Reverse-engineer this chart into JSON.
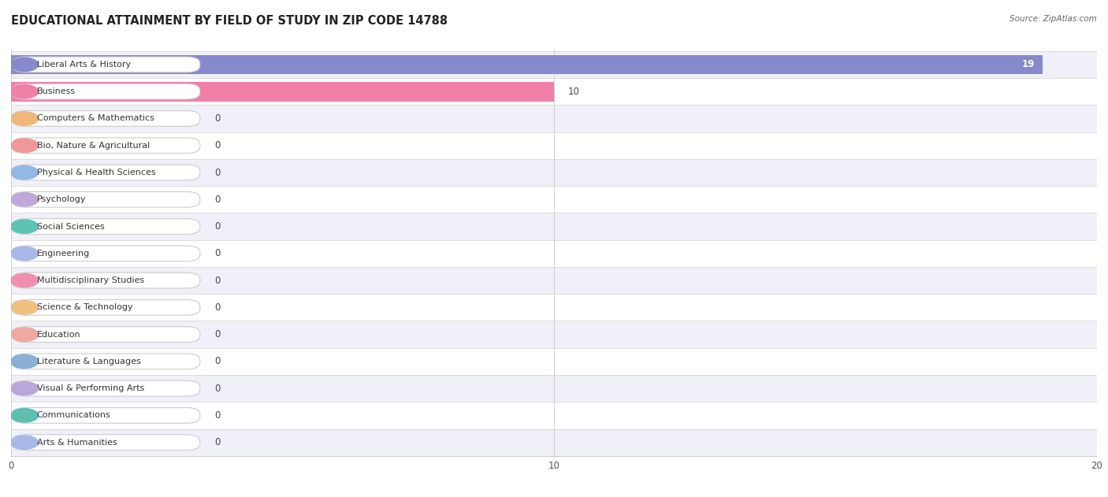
{
  "title": "EDUCATIONAL ATTAINMENT BY FIELD OF STUDY IN ZIP CODE 14788",
  "source": "Source: ZipAtlas.com",
  "categories": [
    "Liberal Arts & History",
    "Business",
    "Computers & Mathematics",
    "Bio, Nature & Agricultural",
    "Physical & Health Sciences",
    "Psychology",
    "Social Sciences",
    "Engineering",
    "Multidisciplinary Studies",
    "Science & Technology",
    "Education",
    "Literature & Languages",
    "Visual & Performing Arts",
    "Communications",
    "Arts & Humanities"
  ],
  "values": [
    19,
    10,
    0,
    0,
    0,
    0,
    0,
    0,
    0,
    0,
    0,
    0,
    0,
    0,
    0
  ],
  "bar_colors": [
    "#8888cc",
    "#f080a8",
    "#f0b878",
    "#f09898",
    "#90b8e8",
    "#c0a8d8",
    "#5cc4b4",
    "#a8b8e8",
    "#f090b0",
    "#f0c080",
    "#f0a8a0",
    "#8ab0d8",
    "#b8a8d8",
    "#5cc0b0",
    "#a8b8e8"
  ],
  "row_bg_even": "#f0f0f8",
  "row_bg_odd": "#ffffff",
  "xlim": [
    0,
    20
  ],
  "xticks": [
    0,
    10,
    20
  ],
  "background_color": "#ffffff",
  "bar_height": 0.72,
  "title_fontsize": 10.5,
  "label_fontsize": 8.0,
  "value_fontsize": 8.5
}
